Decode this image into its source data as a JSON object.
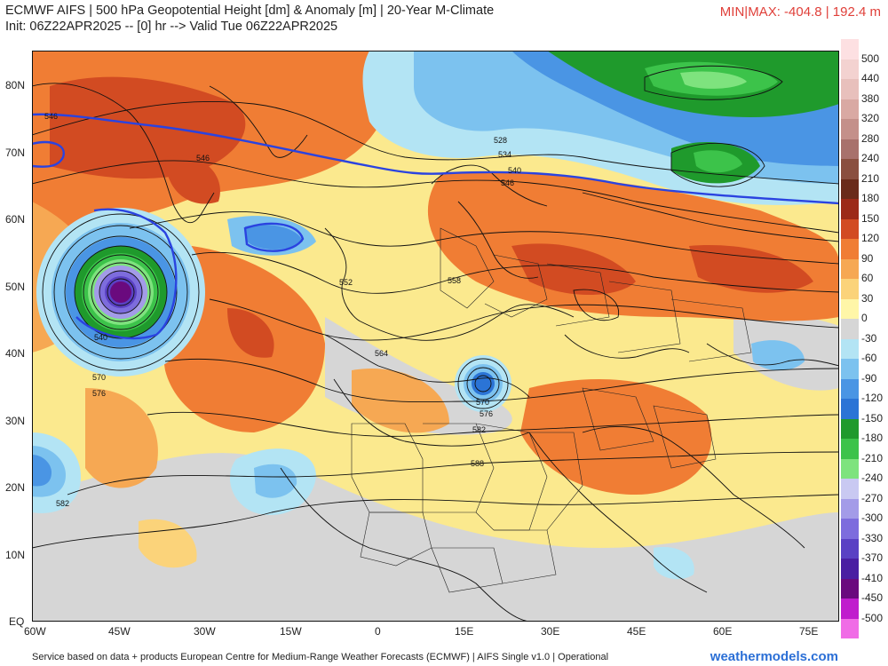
{
  "header": {
    "title_line1": "ECMWF AIFS | 500 hPa Geopotential Height [dm] & Anomaly [m] | 20-Year M-Climate",
    "title_line2": "Init: 06Z22APR2025 -- [0] hr --> Valid Tue 06Z22APR2025",
    "minmax": "MIN|MAX: -404.8 | 192.4 m"
  },
  "axes": {
    "lat_labels": [
      "80N",
      "70N",
      "60N",
      "50N",
      "40N",
      "30N",
      "20N",
      "10N",
      "EQ"
    ],
    "lon_labels": [
      "60W",
      "45W",
      "30W",
      "15W",
      "0",
      "15E",
      "30E",
      "45E",
      "60E",
      "75E"
    ]
  },
  "colorbar": {
    "labels": [
      "500",
      "440",
      "380",
      "320",
      "280",
      "240",
      "210",
      "180",
      "150",
      "120",
      "90",
      "60",
      "30",
      "0",
      "-30",
      "-60",
      "-90",
      "-120",
      "-150",
      "-180",
      "-210",
      "-240",
      "-270",
      "-300",
      "-330",
      "-370",
      "-410",
      "-450",
      "-500"
    ],
    "colors": [
      "#fde0e2",
      "#f3d2d0",
      "#e8c0bc",
      "#d9a9a3",
      "#c4908a",
      "#a8716c",
      "#8a4f3f",
      "#6a2b1a",
      "#9c2a18",
      "#d24b22",
      "#f07d34",
      "#f6a853",
      "#fbd37a",
      "#fff6a8",
      "#d6d6d6",
      "#b3e4f4",
      "#7cc2ef",
      "#4a95e4",
      "#2b74d6",
      "#1f9a2c",
      "#3cc34a",
      "#7ee37e",
      "#c9c9f2",
      "#a39be8",
      "#7d6cdd",
      "#5a41c4",
      "#4a1ea2",
      "#6a0a7e",
      "#c01ccd",
      "#f06ce6"
    ]
  },
  "contour_labels": [
    "546",
    "546",
    "528",
    "534",
    "540",
    "546",
    "552",
    "558",
    "564",
    "570",
    "576",
    "570",
    "576",
    "582",
    "588",
    "582",
    "540"
  ],
  "footer": {
    "credit": "Service based on data + products European Centre for Medium-Range Weather Forecasts (ECMWF) | AIFS Single v1.0 | Operational",
    "watermark": "weathermodels.com"
  }
}
